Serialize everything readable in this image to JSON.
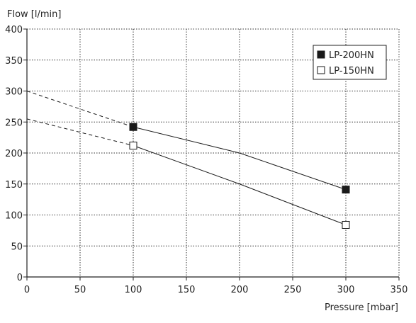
{
  "chart_data": {
    "type": "line",
    "xlabel": "Pressure [mbar]",
    "ylabel": "Flow [l/min]",
    "xlim": [
      0,
      350
    ],
    "ylim": [
      0,
      400
    ],
    "x_ticks": [
      0,
      50,
      100,
      150,
      200,
      250,
      300,
      350
    ],
    "y_ticks": [
      0,
      50,
      100,
      150,
      200,
      250,
      300,
      350,
      400
    ],
    "grid": true,
    "legend_position": "top-right",
    "series": [
      {
        "name": "LP-200HN",
        "marker": "filled-square",
        "color": "#1a1a1a",
        "points": [
          [
            100,
            242
          ],
          [
            300,
            141
          ]
        ],
        "curve": [
          [
            100,
            242
          ],
          [
            200,
            200
          ],
          [
            300,
            141
          ]
        ],
        "extrapolation": [
          [
            0,
            300
          ],
          [
            100,
            242
          ]
        ]
      },
      {
        "name": "LP-150HN",
        "marker": "open-square",
        "color": "#1a1a1a",
        "points": [
          [
            100,
            212
          ],
          [
            300,
            84
          ]
        ],
        "curve": [
          [
            100,
            212
          ],
          [
            200,
            150
          ],
          [
            300,
            84
          ]
        ],
        "extrapolation": [
          [
            0,
            255
          ],
          [
            100,
            212
          ]
        ]
      }
    ]
  }
}
